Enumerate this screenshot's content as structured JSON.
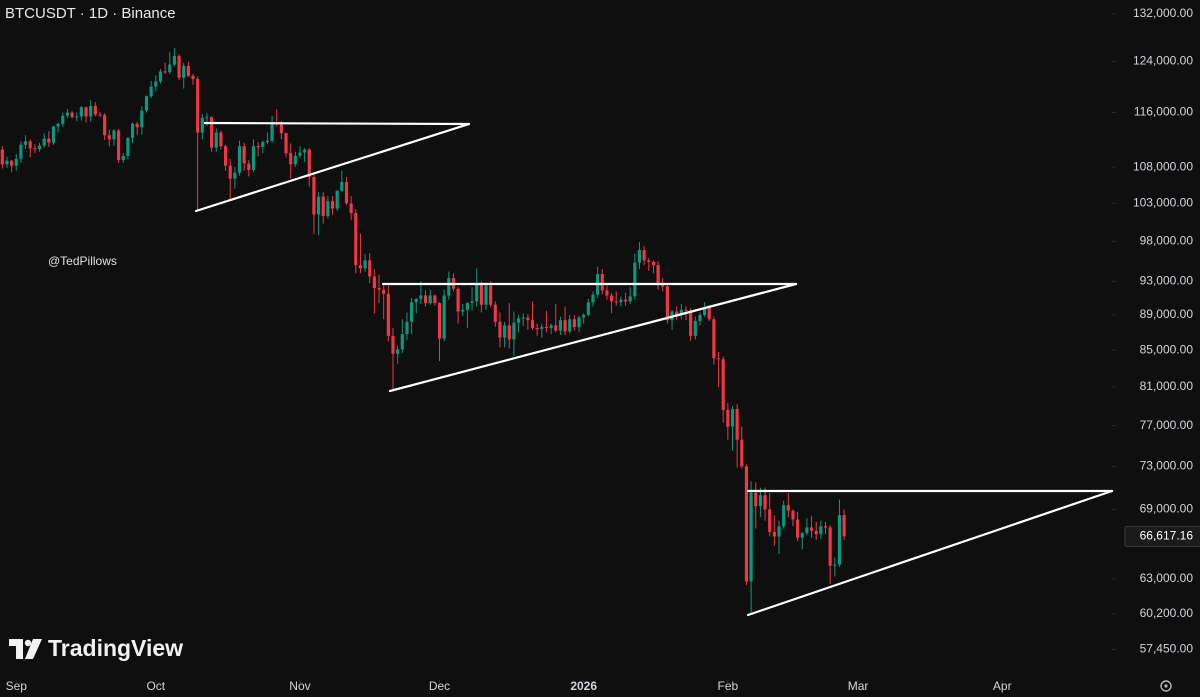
{
  "chart_data": {
    "type": "candlestick",
    "title": "BTCUSDT · 1D · Binance",
    "annotation": "@TedPillows",
    "brand": "TradingView",
    "log_scale": true,
    "up_color": "#089981",
    "down_color": "#f23645",
    "open": [
      110500,
      108400,
      108900,
      108200,
      109200,
      111200,
      111700,
      110700,
      110600,
      111100,
      112100,
      111500,
      113900,
      114300,
      115500,
      116000,
      115300,
      115400,
      116800,
      115400,
      117000,
      115700,
      115600,
      112600,
      112000,
      113300,
      109000,
      109600,
      112200,
      114300,
      113800,
      116300,
      118500,
      120000,
      120800,
      122400,
      122300,
      123500,
      124900,
      121400,
      123300,
      121700,
      121200,
      113000,
      115200,
      115300,
      110800,
      113000,
      111000,
      108200,
      106400,
      107200,
      111000,
      108500,
      107600,
      111000,
      110900,
      111600,
      111800,
      114500,
      114200,
      112900,
      110000,
      108400,
      109600,
      110100,
      110500,
      106600,
      101500,
      103900,
      101300,
      103300,
      102300,
      104700,
      105900,
      103000,
      101700,
      95000,
      94600,
      95600,
      93600,
      92200,
      92000,
      91500,
      86600,
      84600,
      85100,
      86800,
      88200,
      90500,
      90900,
      91300,
      90400,
      91300,
      90400,
      86300,
      91300,
      93400,
      92100,
      89400,
      89600,
      90400,
      90600,
      92700,
      90200,
      92500,
      90200,
      88200,
      86400,
      87800,
      86200,
      88100,
      88600,
      88700,
      88400,
      87500,
      87400,
      87600,
      87500,
      87800,
      87200,
      88400,
      87100,
      88500,
      87600,
      88700,
      89000,
      90500,
      91400,
      93900,
      91900,
      91300,
      90600,
      90500,
      90800,
      90600,
      91200,
      95300,
      96900,
      95600,
      95400,
      95000,
      92600,
      92400,
      88400,
      89400,
      89000,
      89600,
      89500,
      86600,
      88300,
      89000,
      89900,
      88500,
      84100,
      84000,
      78600,
      76900,
      78700,
      75600,
      73000,
      62800,
      70500,
      69300,
      70300,
      69000,
      67000,
      66600,
      67500,
      69400,
      68900,
      68100,
      66500,
      66900,
      67400,
      67100,
      66800,
      67500,
      67400,
      64100,
      64200,
      68500
    ],
    "high": [
      111000,
      109500,
      109000,
      109900,
      111700,
      112600,
      112000,
      111300,
      111500,
      112900,
      113200,
      114000,
      114400,
      116000,
      116500,
      116200,
      116000,
      117000,
      116900,
      117900,
      117600,
      116100,
      115900,
      113400,
      113500,
      113500,
      110000,
      112300,
      114500,
      114600,
      117000,
      118600,
      120900,
      121800,
      122800,
      123800,
      125600,
      126200,
      125200,
      123800,
      124000,
      122000,
      121600,
      115800,
      115900,
      115400,
      113600,
      113300,
      111200,
      109200,
      108000,
      111800,
      111500,
      109000,
      112000,
      111600,
      111800,
      113000,
      115500,
      116500,
      114700,
      113000,
      111400,
      110200,
      111000,
      110700,
      110700,
      107300,
      104500,
      104500,
      104000,
      104000,
      104800,
      107500,
      106600,
      104000,
      102200,
      99000,
      96400,
      96500,
      94500,
      93800,
      92800,
      92500,
      87500,
      85500,
      88500,
      89300,
      91000,
      91000,
      93000,
      91900,
      92000,
      91400,
      90500,
      92000,
      94200,
      94000,
      92300,
      90300,
      90500,
      92300,
      94600,
      93000,
      92800,
      93000,
      90600,
      89300,
      88200,
      90400,
      89400,
      89000,
      89200,
      89100,
      90600,
      88000,
      88000,
      89500,
      88000,
      90300,
      88800,
      90000,
      89000,
      89000,
      88900,
      89200,
      90900,
      91800,
      94800,
      94500,
      92500,
      91600,
      91800,
      91200,
      91600,
      92300,
      96400,
      97900,
      97400,
      95900,
      95600,
      95500,
      93400,
      92600,
      89600,
      90000,
      90300,
      90000,
      89800,
      88800,
      89300,
      90500,
      90200,
      88800,
      84800,
      84300,
      79300,
      79000,
      79200,
      76900,
      73200,
      71600,
      71500,
      71000,
      71000,
      70500,
      68500,
      68000,
      69800,
      70500,
      69000,
      68800,
      67000,
      68200,
      68400,
      67900,
      68000,
      67900,
      67600,
      64800,
      69900,
      69000
    ],
    "low": [
      107800,
      107900,
      107300,
      107500,
      108600,
      110600,
      109400,
      110000,
      110200,
      110800,
      110900,
      111200,
      113000,
      113900,
      115200,
      115100,
      114700,
      114800,
      114500,
      114600,
      115400,
      115300,
      111900,
      111000,
      111100,
      108600,
      108600,
      109100,
      111500,
      112600,
      112700,
      116000,
      118200,
      119300,
      120500,
      122000,
      122000,
      123200,
      121000,
      119700,
      121500,
      120300,
      102000,
      112000,
      114000,
      110200,
      110200,
      110500,
      107500,
      103500,
      105000,
      106800,
      107500,
      106700,
      107300,
      109500,
      110000,
      111300,
      111500,
      113900,
      112000,
      109400,
      106400,
      108000,
      109300,
      108700,
      105300,
      98900,
      98800,
      100300,
      101000,
      101500,
      102000,
      104500,
      102800,
      100800,
      94000,
      94000,
      94200,
      92800,
      89200,
      90400,
      88500,
      86000,
      80600,
      83500,
      84700,
      86100,
      86800,
      89200,
      90300,
      90000,
      90200,
      90100,
      83800,
      86000,
      90800,
      91800,
      88000,
      88900,
      87500,
      89500,
      90000,
      89300,
      89600,
      89900,
      87600,
      85300,
      85300,
      85200,
      84400,
      87000,
      87700,
      87300,
      87300,
      86600,
      86400,
      87000,
      86800,
      87000,
      86700,
      86700,
      86900,
      87200,
      87000,
      88000,
      88900,
      90000,
      91000,
      91400,
      90800,
      89200,
      90100,
      90000,
      90100,
      90300,
      90800,
      94500,
      95000,
      94300,
      94000,
      92000,
      91800,
      88000,
      87300,
      88400,
      88500,
      88400,
      86000,
      86200,
      87800,
      88800,
      88300,
      83400,
      81000,
      77300,
      75600,
      74500,
      72900,
      72800,
      62500,
      60100,
      67300,
      68300,
      68000,
      66600,
      65800,
      65100,
      67300,
      68300,
      67500,
      66200,
      65500,
      66700,
      66500,
      66300,
      66400,
      66800,
      62600,
      63200,
      64000,
      66300
    ],
    "close": [
      108400,
      108900,
      108200,
      109200,
      111200,
      111700,
      110700,
      110600,
      111100,
      112100,
      111500,
      113900,
      114300,
      115500,
      116000,
      115300,
      115400,
      116800,
      115400,
      117000,
      115700,
      115600,
      112600,
      112000,
      113300,
      109000,
      109600,
      112200,
      114300,
      113800,
      116300,
      118500,
      120000,
      120800,
      122400,
      122300,
      123500,
      124900,
      121400,
      123300,
      121700,
      121200,
      113000,
      115200,
      115300,
      110800,
      113000,
      111000,
      108200,
      106400,
      107200,
      111000,
      108500,
      107600,
      111000,
      110900,
      111600,
      111800,
      114500,
      114200,
      112900,
      110000,
      108400,
      109600,
      110100,
      110500,
      106600,
      101500,
      103900,
      101300,
      103300,
      102300,
      104700,
      105900,
      103000,
      101700,
      95000,
      94600,
      95600,
      93600,
      92200,
      92000,
      91500,
      86600,
      84600,
      85100,
      86800,
      88200,
      90500,
      90900,
      91300,
      90400,
      91300,
      90400,
      86300,
      91300,
      93400,
      92100,
      89400,
      89600,
      90400,
      90600,
      92700,
      90200,
      92500,
      90200,
      88200,
      86400,
      87800,
      86200,
      88100,
      88600,
      88700,
      88400,
      87500,
      87400,
      87600,
      87500,
      87800,
      87200,
      88400,
      87100,
      88500,
      87600,
      88700,
      89000,
      90500,
      91400,
      93900,
      91900,
      91300,
      90600,
      90500,
      90800,
      90600,
      91200,
      95300,
      96900,
      95600,
      95400,
      95000,
      92600,
      92400,
      88400,
      89400,
      89000,
      89600,
      89500,
      86600,
      88300,
      89000,
      89900,
      88500,
      84100,
      84000,
      78600,
      76900,
      78700,
      75600,
      73000,
      62800,
      70500,
      69300,
      70300,
      69000,
      67000,
      66600,
      67500,
      69400,
      68900,
      68100,
      66500,
      66900,
      67400,
      67100,
      66800,
      67500,
      67400,
      64100,
      64200,
      68500,
      66617.16
    ],
    "last_price": {
      "value": 66617.16,
      "label": "66,617.16"
    },
    "xlim": [
      -0.5,
      238.6
    ],
    "xticks": [
      {
        "value": 3,
        "label": "Sep"
      },
      {
        "value": 33,
        "label": "Oct"
      },
      {
        "value": 64,
        "label": "Nov"
      },
      {
        "value": 94,
        "label": "Dec"
      },
      {
        "value": 125,
        "label": "2026"
      },
      {
        "value": 156,
        "label": "Feb"
      },
      {
        "value": 184,
        "label": "Mar"
      },
      {
        "value": 215,
        "label": "Apr"
      }
    ],
    "ylim": [
      55200,
      134400
    ],
    "yticks": [
      {
        "value": 132000,
        "label": "132,000.00"
      },
      {
        "value": 124000,
        "label": "124,000.00"
      },
      {
        "value": 116000,
        "label": "116,000.00"
      },
      {
        "value": 108000,
        "label": "108,000.00"
      },
      {
        "value": 103000,
        "label": "103,000.00"
      },
      {
        "value": 98000,
        "label": "98,000.00"
      },
      {
        "value": 93000,
        "label": "93,000.00"
      },
      {
        "value": 89000,
        "label": "89,000.00"
      },
      {
        "value": 85000,
        "label": "85,000.00"
      },
      {
        "value": 81000,
        "label": "81,000.00"
      },
      {
        "value": 77000,
        "label": "77,000.00"
      },
      {
        "value": 73000,
        "label": "73,000.00"
      },
      {
        "value": 69000,
        "label": "69,000.00"
      },
      {
        "value": 63000,
        "label": "63,000.00"
      },
      {
        "value": 60200,
        "label": "60,200.00"
      },
      {
        "value": 57450,
        "label": "57,450.00"
      }
    ]
  }
}
